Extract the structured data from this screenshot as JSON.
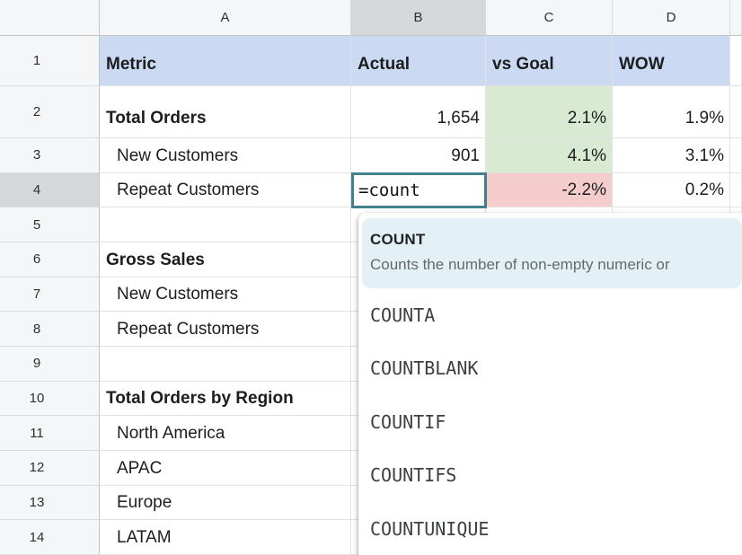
{
  "colors": {
    "header_row_fill": "#cbdaf2",
    "positive_fill": "#d9ead3",
    "negative_fill": "#f4cccc",
    "active_cell_border": "#41808d",
    "autocomplete_highlight_fill": "#e3f1f6",
    "selected_header_fill": "#d5d7d8"
  },
  "sheet": {
    "column_headers": [
      "A",
      "B",
      "C",
      "D"
    ],
    "rows": [
      {
        "num": "1",
        "a": "Metric",
        "b": "Actual",
        "c": "vs Goal",
        "d": "WOW"
      },
      {
        "num": "2",
        "a": "Total Orders",
        "b": "1,654",
        "c": "2.1%",
        "d": "1.9%"
      },
      {
        "num": "3",
        "a": "New Customers",
        "b": "901",
        "c": "4.1%",
        "d": "3.1%"
      },
      {
        "num": "4",
        "a": "Repeat Customers",
        "b": "",
        "c": "-2.2%",
        "d": "0.2%"
      },
      {
        "num": "5",
        "a": ""
      },
      {
        "num": "6",
        "a": "Gross Sales"
      },
      {
        "num": "7",
        "a": "New Customers"
      },
      {
        "num": "8",
        "a": "Repeat Customers"
      },
      {
        "num": "9",
        "a": ""
      },
      {
        "num": "10",
        "a": "Total Orders by Region"
      },
      {
        "num": "11",
        "a": "North America"
      },
      {
        "num": "12",
        "a": "APAC"
      },
      {
        "num": "13",
        "a": "Europe"
      },
      {
        "num": "14",
        "a": "LATAM"
      }
    ]
  },
  "cell_editor": {
    "value": "=count"
  },
  "autocomplete": {
    "highlighted": {
      "name": "COUNT",
      "description": "Counts the number of non-empty numeric or"
    },
    "items": [
      "COUNTA",
      "COUNTBLANK",
      "COUNTIF",
      "COUNTIFS",
      "COUNTUNIQUE"
    ]
  }
}
